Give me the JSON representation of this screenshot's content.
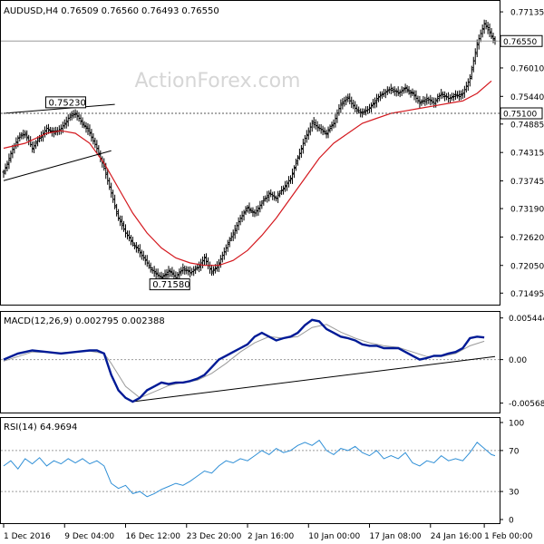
{
  "chart_data": [
    {
      "type": "ohlc",
      "title": "AUDUSD,H4",
      "header_values": [
        "0.76509",
        "0.76560",
        "0.76493",
        "0.76550"
      ],
      "watermark": "ActionForex.com",
      "ylim": [
        0.713,
        0.773
      ],
      "y_ticks": [
        "0.77135",
        "0.76550",
        "0.76010",
        "0.75440",
        "0.75100",
        "0.74885",
        "0.74315",
        "0.73745",
        "0.73190",
        "0.72620",
        "0.72050",
        "0.71495"
      ],
      "last_price": {
        "label": "0.76550",
        "value": 0.7655
      },
      "support_level": {
        "label": "0.75100",
        "value": 0.751
      },
      "annotations": [
        {
          "label": "0.75230",
          "value": 0.7523,
          "x": 12
        },
        {
          "label": "0.71580",
          "value": 0.7158,
          "x": 41
        }
      ],
      "price_path_close": [
        [
          0,
          0.739
        ],
        [
          2,
          0.743
        ],
        [
          4,
          0.746
        ],
        [
          6,
          0.747
        ],
        [
          8,
          0.744
        ],
        [
          10,
          0.746
        ],
        [
          12,
          0.748
        ],
        [
          14,
          0.747
        ],
        [
          16,
          0.748
        ],
        [
          18,
          0.75
        ],
        [
          20,
          0.751
        ],
        [
          22,
          0.749
        ],
        [
          24,
          0.747
        ],
        [
          26,
          0.744
        ],
        [
          28,
          0.74
        ],
        [
          30,
          0.735
        ],
        [
          32,
          0.73
        ],
        [
          34,
          0.727
        ],
        [
          36,
          0.725
        ],
        [
          38,
          0.723
        ],
        [
          40,
          0.721
        ],
        [
          42,
          0.719
        ],
        [
          44,
          0.718
        ],
        [
          46,
          0.7195
        ],
        [
          48,
          0.718
        ],
        [
          50,
          0.72
        ],
        [
          52,
          0.719
        ],
        [
          54,
          0.72
        ],
        [
          56,
          0.722
        ],
        [
          58,
          0.719
        ],
        [
          60,
          0.721
        ],
        [
          62,
          0.724
        ],
        [
          64,
          0.727
        ],
        [
          66,
          0.73
        ],
        [
          68,
          0.732
        ],
        [
          70,
          0.731
        ],
        [
          72,
          0.733
        ],
        [
          74,
          0.735
        ],
        [
          76,
          0.734
        ],
        [
          78,
          0.736
        ],
        [
          80,
          0.738
        ],
        [
          82,
          0.742
        ],
        [
          84,
          0.746
        ],
        [
          86,
          0.749
        ],
        [
          88,
          0.748
        ],
        [
          90,
          0.747
        ],
        [
          92,
          0.749
        ],
        [
          94,
          0.753
        ],
        [
          96,
          0.754
        ],
        [
          98,
          0.752
        ],
        [
          100,
          0.751
        ],
        [
          102,
          0.752
        ],
        [
          104,
          0.754
        ],
        [
          106,
          0.755
        ],
        [
          108,
          0.756
        ],
        [
          110,
          0.755
        ],
        [
          112,
          0.756
        ],
        [
          114,
          0.755
        ],
        [
          116,
          0.753
        ],
        [
          118,
          0.754
        ],
        [
          120,
          0.753
        ],
        [
          122,
          0.755
        ],
        [
          124,
          0.754
        ],
        [
          126,
          0.7545
        ],
        [
          128,
          0.755
        ],
        [
          130,
          0.758
        ],
        [
          132,
          0.765
        ],
        [
          134,
          0.769
        ],
        [
          136,
          0.7665
        ],
        [
          137,
          0.7655
        ]
      ],
      "moving_average": [
        [
          0,
          0.744
        ],
        [
          6,
          0.745
        ],
        [
          12,
          0.747
        ],
        [
          16,
          0.7475
        ],
        [
          20,
          0.747
        ],
        [
          24,
          0.745
        ],
        [
          28,
          0.741
        ],
        [
          32,
          0.736
        ],
        [
          36,
          0.731
        ],
        [
          40,
          0.727
        ],
        [
          44,
          0.724
        ],
        [
          48,
          0.722
        ],
        [
          52,
          0.721
        ],
        [
          56,
          0.7205
        ],
        [
          60,
          0.7205
        ],
        [
          64,
          0.7215
        ],
        [
          68,
          0.7235
        ],
        [
          72,
          0.7265
        ],
        [
          76,
          0.73
        ],
        [
          80,
          0.734
        ],
        [
          84,
          0.738
        ],
        [
          88,
          0.742
        ],
        [
          92,
          0.745
        ],
        [
          96,
          0.747
        ],
        [
          100,
          0.749
        ],
        [
          104,
          0.75
        ],
        [
          108,
          0.751
        ],
        [
          112,
          0.7515
        ],
        [
          116,
          0.752
        ],
        [
          120,
          0.7525
        ],
        [
          124,
          0.753
        ],
        [
          128,
          0.7535
        ],
        [
          132,
          0.755
        ],
        [
          136,
          0.7575
        ]
      ],
      "trendlines": [
        {
          "from": [
            0,
            0.751
          ],
          "to": [
            31,
            0.7528
          ]
        },
        {
          "from": [
            0,
            0.7375
          ],
          "to": [
            30,
            0.7435
          ]
        }
      ]
    },
    {
      "type": "line",
      "title": "MACD(12,26,9) 0.002795 0.002388",
      "ylim": [
        -0.0068,
        0.006
      ],
      "y_ticks": [
        "0.005444",
        "0.00",
        "-0.005685"
      ],
      "series": [
        {
          "values": [
            [
              0,
              0.0
            ],
            [
              4,
              0.0008
            ],
            [
              8,
              0.0012
            ],
            [
              12,
              0.001
            ],
            [
              16,
              0.0008
            ],
            [
              20,
              0.001
            ],
            [
              24,
              0.0012
            ],
            [
              26,
              0.0012
            ],
            [
              28,
              0.0008
            ],
            [
              30,
              -0.002
            ],
            [
              32,
              -0.004
            ],
            [
              34,
              -0.005
            ],
            [
              36,
              -0.0055
            ],
            [
              38,
              -0.005
            ],
            [
              40,
              -0.004
            ],
            [
              42,
              -0.0035
            ],
            [
              44,
              -0.003
            ],
            [
              46,
              -0.0032
            ],
            [
              48,
              -0.003
            ],
            [
              50,
              -0.003
            ],
            [
              52,
              -0.0028
            ],
            [
              54,
              -0.0025
            ],
            [
              56,
              -0.002
            ],
            [
              58,
              -0.001
            ],
            [
              60,
              0.0
            ],
            [
              62,
              0.0005
            ],
            [
              64,
              0.001
            ],
            [
              66,
              0.0015
            ],
            [
              68,
              0.002
            ],
            [
              70,
              0.003
            ],
            [
              72,
              0.0035
            ],
            [
              74,
              0.003
            ],
            [
              76,
              0.0025
            ],
            [
              78,
              0.0028
            ],
            [
              80,
              0.003
            ],
            [
              82,
              0.0035
            ],
            [
              84,
              0.0045
            ],
            [
              86,
              0.0052
            ],
            [
              88,
              0.005
            ],
            [
              90,
              0.004
            ],
            [
              92,
              0.0035
            ],
            [
              94,
              0.003
            ],
            [
              96,
              0.0028
            ],
            [
              98,
              0.0025
            ],
            [
              100,
              0.002
            ],
            [
              102,
              0.0018
            ],
            [
              104,
              0.0018
            ],
            [
              106,
              0.0015
            ],
            [
              108,
              0.0015
            ],
            [
              110,
              0.0015
            ],
            [
              112,
              0.001
            ],
            [
              114,
              0.0005
            ],
            [
              116,
              0.0
            ],
            [
              118,
              0.0002
            ],
            [
              120,
              0.0005
            ],
            [
              122,
              0.0005
            ],
            [
              124,
              0.0008
            ],
            [
              126,
              0.001
            ],
            [
              128,
              0.0015
            ],
            [
              130,
              0.0028
            ],
            [
              132,
              0.003
            ],
            [
              134,
              0.0029
            ]
          ]
        },
        {
          "values": [
            [
              0,
              -0.0002
            ],
            [
              8,
              0.001
            ],
            [
              16,
              0.0009
            ],
            [
              24,
              0.0011
            ],
            [
              28,
              0.0008
            ],
            [
              30,
              -0.0005
            ],
            [
              34,
              -0.0035
            ],
            [
              38,
              -0.005
            ],
            [
              42,
              -0.0042
            ],
            [
              46,
              -0.0034
            ],
            [
              50,
              -0.003
            ],
            [
              54,
              -0.0027
            ],
            [
              58,
              -0.0018
            ],
            [
              62,
              -0.0005
            ],
            [
              66,
              0.001
            ],
            [
              70,
              0.0022
            ],
            [
              74,
              0.003
            ],
            [
              78,
              0.0028
            ],
            [
              82,
              0.003
            ],
            [
              86,
              0.0042
            ],
            [
              90,
              0.0046
            ],
            [
              94,
              0.0036
            ],
            [
              98,
              0.0028
            ],
            [
              102,
              0.0022
            ],
            [
              106,
              0.0018
            ],
            [
              110,
              0.0016
            ],
            [
              114,
              0.001
            ],
            [
              118,
              0.0004
            ],
            [
              122,
              0.0004
            ],
            [
              126,
              0.0008
            ],
            [
              130,
              0.0018
            ],
            [
              134,
              0.0024
            ]
          ]
        }
      ],
      "trendline": {
        "from": [
          36,
          -0.0055
        ],
        "to": [
          137,
          0.0004
        ]
      }
    },
    {
      "type": "line",
      "title": "RSI(14) 64.9694",
      "ylim": [
        0,
        100
      ],
      "y_ticks": [
        "100",
        "70",
        "30",
        "0"
      ],
      "levels": [
        70,
        30
      ],
      "series": [
        {
          "values": [
            [
              0,
              55
            ],
            [
              2,
              60
            ],
            [
              4,
              52
            ],
            [
              6,
              62
            ],
            [
              8,
              57
            ],
            [
              10,
              63
            ],
            [
              12,
              55
            ],
            [
              14,
              60
            ],
            [
              16,
              57
            ],
            [
              18,
              62
            ],
            [
              20,
              58
            ],
            [
              22,
              62
            ],
            [
              24,
              57
            ],
            [
              26,
              60
            ],
            [
              28,
              55
            ],
            [
              30,
              38
            ],
            [
              32,
              33
            ],
            [
              34,
              36
            ],
            [
              36,
              28
            ],
            [
              38,
              30
            ],
            [
              40,
              25
            ],
            [
              42,
              28
            ],
            [
              44,
              32
            ],
            [
              46,
              35
            ],
            [
              48,
              38
            ],
            [
              50,
              36
            ],
            [
              52,
              40
            ],
            [
              54,
              45
            ],
            [
              56,
              50
            ],
            [
              58,
              48
            ],
            [
              60,
              55
            ],
            [
              62,
              60
            ],
            [
              64,
              58
            ],
            [
              66,
              62
            ],
            [
              68,
              60
            ],
            [
              70,
              65
            ],
            [
              72,
              70
            ],
            [
              74,
              66
            ],
            [
              76,
              72
            ],
            [
              78,
              68
            ],
            [
              80,
              70
            ],
            [
              82,
              75
            ],
            [
              84,
              78
            ],
            [
              86,
              75
            ],
            [
              88,
              80
            ],
            [
              90,
              70
            ],
            [
              92,
              66
            ],
            [
              94,
              72
            ],
            [
              96,
              70
            ],
            [
              98,
              74
            ],
            [
              100,
              68
            ],
            [
              102,
              65
            ],
            [
              104,
              70
            ],
            [
              106,
              62
            ],
            [
              108,
              65
            ],
            [
              110,
              62
            ],
            [
              112,
              68
            ],
            [
              114,
              58
            ],
            [
              116,
              55
            ],
            [
              118,
              60
            ],
            [
              120,
              58
            ],
            [
              122,
              65
            ],
            [
              124,
              60
            ],
            [
              126,
              62
            ],
            [
              128,
              60
            ],
            [
              130,
              68
            ],
            [
              132,
              78
            ],
            [
              134,
              72
            ],
            [
              136,
              66
            ],
            [
              137,
              65
            ]
          ]
        }
      ]
    }
  ],
  "x_axis": {
    "tick_labels": [
      "1 Dec 2016",
      "9 Dec 04:00",
      "16 Dec 12:00",
      "23 Dec 20:00",
      "2 Jan 16:00",
      "10 Jan 00:00",
      "17 Jan 08:00",
      "24 Jan 16:00",
      "1 Feb 00:00"
    ],
    "tick_positions": [
      0,
      17,
      34,
      51,
      68,
      85,
      102,
      119,
      134
    ],
    "range": [
      0,
      137
    ]
  },
  "colors": {
    "price": "#000000",
    "moving_average": "#d4191f",
    "macd_line": "#001a96",
    "macd_signal": "#9a9a9a",
    "rsi": "#2f8fd6",
    "grid_level": "#9c9c9c",
    "watermark": "#d6d6d6",
    "frame": "#000000"
  }
}
